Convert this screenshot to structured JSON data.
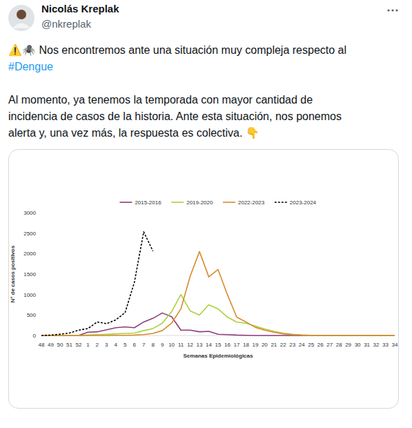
{
  "post": {
    "author": {
      "name": "Nicolás Kreplak",
      "handle": "@nkreplak"
    },
    "paragraphs": [
      [
        "⚠️🕷️ Nos encontremos ante una situación muy compleja respecto al",
        "#Dengue"
      ],
      [
        "Al momento, ya tenemos la temporada con mayor cantidad de",
        "incidencia de casos de la historia. Ante esta situación, nos ponemos",
        "alerta y, una vez más, la respuesta es colectiva. 👇"
      ]
    ]
  },
  "chart_data": {
    "type": "line",
    "x_label": "Semanas Epidemiológicas",
    "y_label": "N° de casos positivos",
    "categories": [
      "48",
      "49",
      "50",
      "51",
      "52",
      "1",
      "2",
      "3",
      "4",
      "5",
      "6",
      "7",
      "8",
      "9",
      "10",
      "11",
      "12",
      "13",
      "14",
      "15",
      "16",
      "17",
      "18",
      "19",
      "20",
      "21",
      "22",
      "23",
      "24",
      "25",
      "26",
      "27",
      "28",
      "29",
      "30",
      "31",
      "32",
      "33",
      "34"
    ],
    "series": [
      {
        "name": "2015-2016",
        "color": "#8e3b7c",
        "line_style": "solid",
        "values": [
          0,
          0,
          0,
          0,
          0,
          80,
          90,
          140,
          190,
          210,
          190,
          330,
          420,
          550,
          460,
          130,
          130,
          90,
          100,
          30,
          20,
          10,
          5,
          0,
          0,
          0,
          0,
          0,
          0,
          0,
          0,
          0,
          0,
          0,
          0,
          0,
          0,
          0,
          0
        ]
      },
      {
        "name": "2019-2020",
        "color": "#a9d13c",
        "line_style": "solid",
        "values": [
          0,
          0,
          0,
          0,
          0,
          10,
          20,
          30,
          40,
          50,
          60,
          120,
          170,
          300,
          580,
          1000,
          600,
          500,
          750,
          650,
          450,
          330,
          300,
          230,
          160,
          100,
          60,
          30,
          10,
          0,
          0,
          0,
          0,
          0,
          0,
          0,
          0,
          0,
          0
        ]
      },
      {
        "name": "2022-2023",
        "color": "#d88a2e",
        "line_style": "solid",
        "values": [
          0,
          0,
          0,
          0,
          0,
          0,
          0,
          0,
          5,
          5,
          10,
          20,
          50,
          120,
          300,
          650,
          1450,
          2050,
          1430,
          1610,
          1000,
          450,
          330,
          200,
          130,
          80,
          40,
          20,
          10,
          5,
          5,
          5,
          5,
          5,
          5,
          5,
          5,
          5,
          5
        ]
      },
      {
        "name": "2023-2024",
        "color": "#000000",
        "line_style": "dashed",
        "values": [
          0,
          10,
          30,
          60,
          130,
          170,
          330,
          290,
          380,
          560,
          1300,
          2530,
          2060,
          null,
          null,
          null,
          null,
          null,
          null,
          null,
          null,
          null,
          null,
          null,
          null,
          null,
          null,
          null,
          null,
          null,
          null,
          null,
          null,
          null,
          null,
          null,
          null,
          null,
          null
        ]
      }
    ],
    "ylim": [
      0,
      3000
    ],
    "yticks": [
      0,
      500,
      1000,
      1500,
      2000,
      2500,
      3000
    ],
    "grid": false,
    "legend": "top"
  }
}
